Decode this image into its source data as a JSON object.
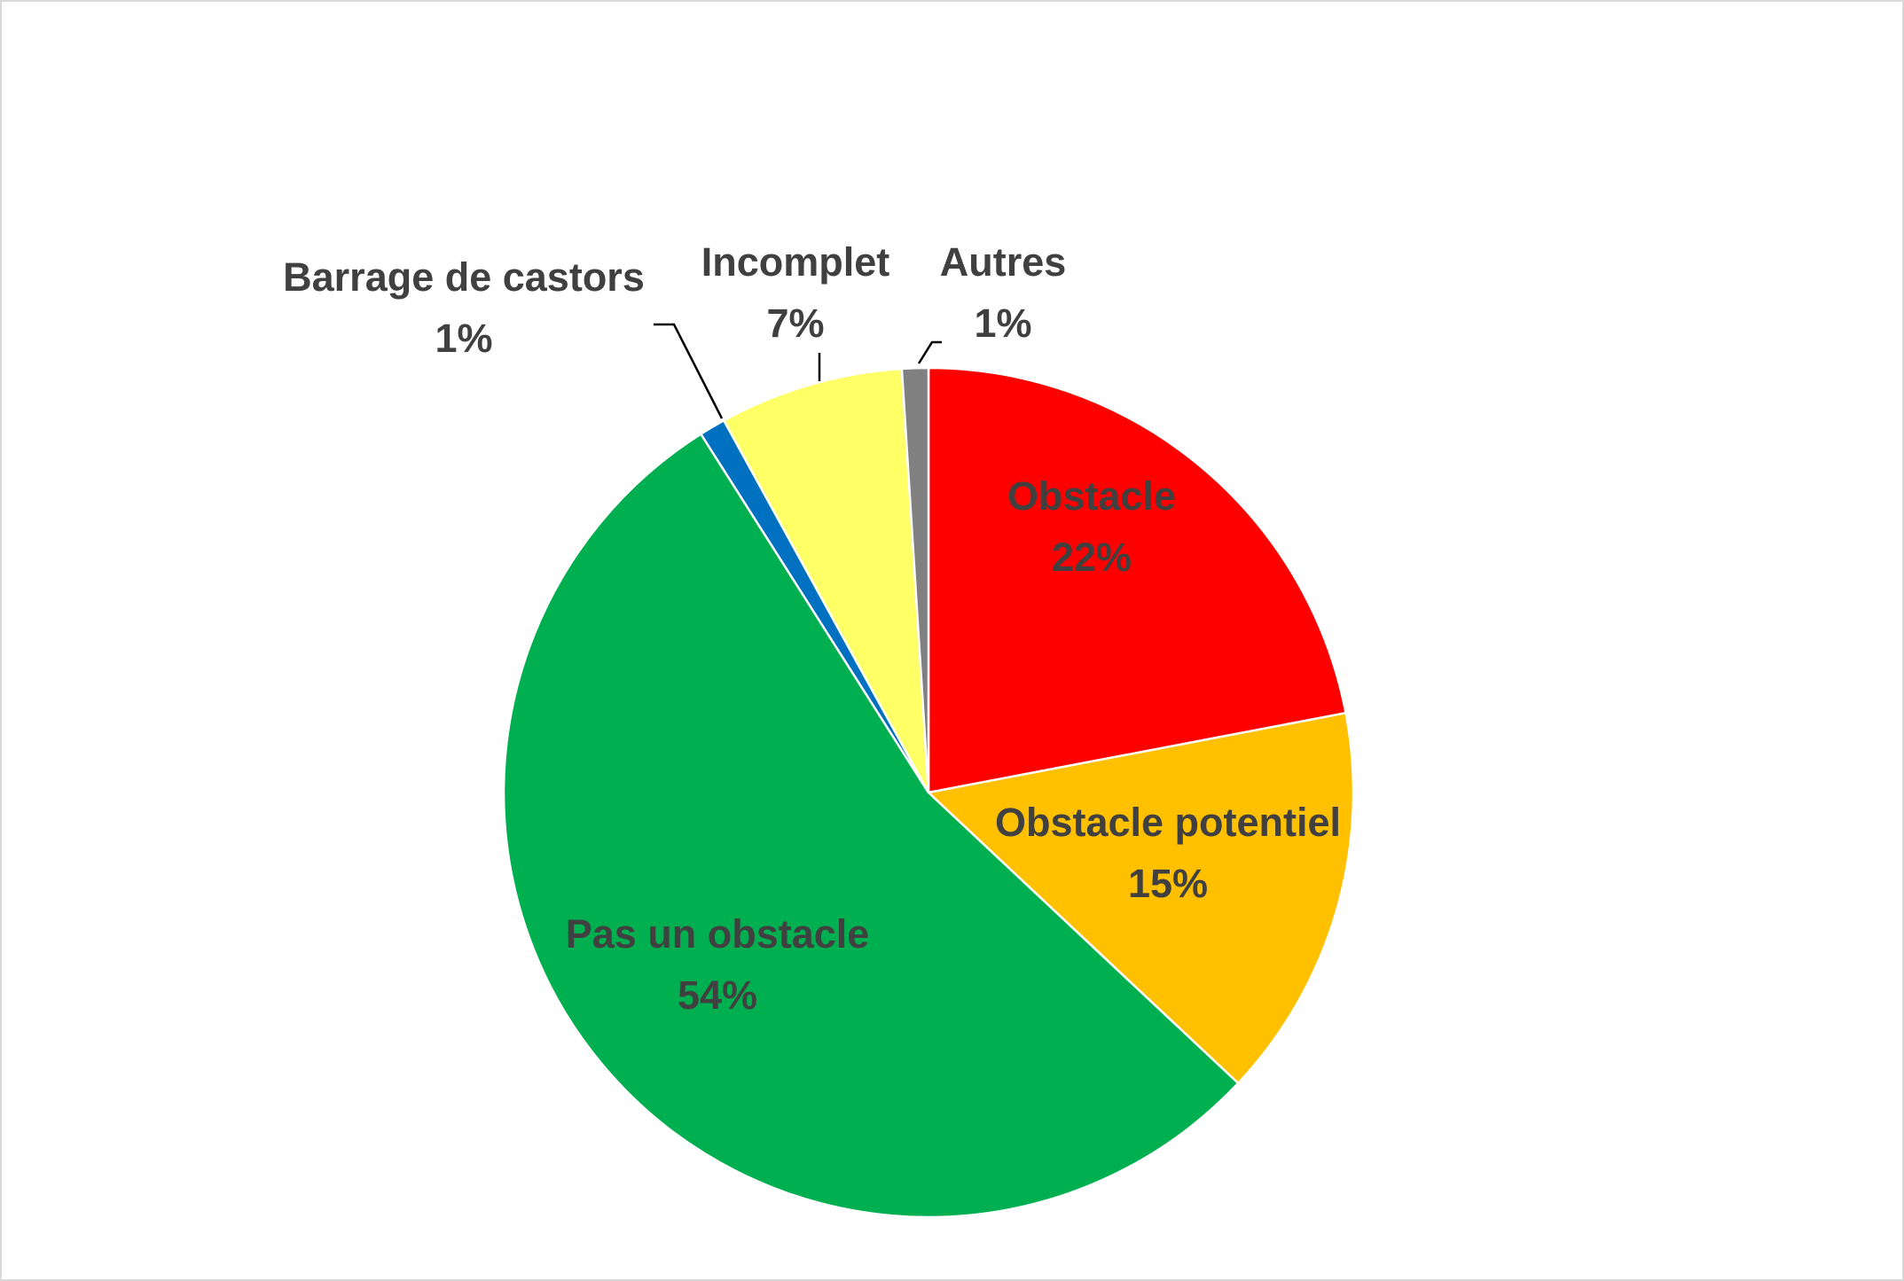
{
  "chart_data": {
    "type": "pie",
    "categories": [
      "Obstacle",
      "Obstacle potentiel",
      "Pas un obstacle",
      "Barrage de castors",
      "Incomplet",
      "Autres"
    ],
    "values": [
      22,
      15,
      54,
      1,
      7,
      1
    ],
    "value_labels": [
      "22%",
      "15%",
      "54%",
      "1%",
      "7%",
      "1%"
    ],
    "colors": [
      "#ff0000",
      "#ffc000",
      "#00b050",
      "#0070c0",
      "#ffff66",
      "#808080"
    ]
  }
}
